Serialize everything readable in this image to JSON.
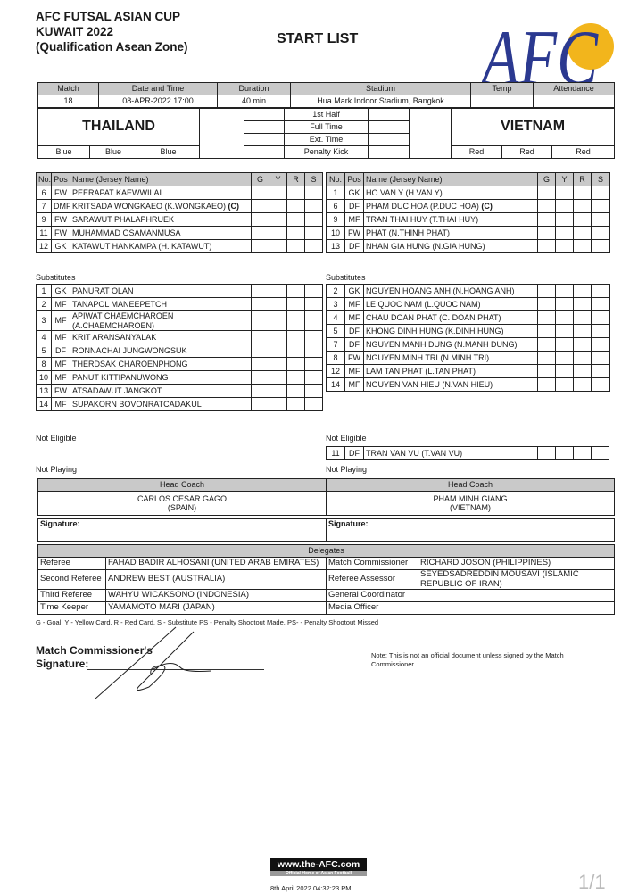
{
  "header": {
    "title_lines": [
      "AFC FUTSAL ASIAN CUP",
      "KUWAIT 2022",
      "(Qualification Asean Zone)"
    ],
    "doc_title": "START LIST",
    "logo_text": "AFC",
    "logo_color": "#2b3990",
    "ball_color": "#f2b51c"
  },
  "match": {
    "labels": {
      "match": "Match",
      "date": "Date and Time",
      "duration": "Duration",
      "stadium": "Stadium",
      "temp": "Temp",
      "attendance": "Attendance"
    },
    "values": {
      "match": "18",
      "date": "08-APR-2022 17:00",
      "duration": "40 min",
      "stadium": "Hua Mark Indoor Stadium, Bangkok",
      "temp": "",
      "attendance": ""
    },
    "home_team": "THAILAND",
    "away_team": "VIETNAM",
    "periods": [
      "1st Half",
      "Full Time",
      "Ext. Time",
      "Penalty Kick"
    ],
    "home_colors": [
      "Blue",
      "Blue",
      "Blue"
    ],
    "away_colors": [
      "Red",
      "Red",
      "Red"
    ]
  },
  "columns": [
    "No.",
    "Pos",
    "Name (Jersey Name)",
    "G",
    "Y",
    "R",
    "S"
  ],
  "home": {
    "starters": [
      {
        "no": "6",
        "pos": "FW",
        "name": "PEERAPAT KAEWWILAI"
      },
      {
        "no": "7",
        "pos": "DMF",
        "name": "KRITSADA WONGKAEO (K.WONGKAEO)",
        "captain": "(C)"
      },
      {
        "no": "9",
        "pos": "FW",
        "name": "SARAWUT PHALAPHRUEK"
      },
      {
        "no": "11",
        "pos": "FW",
        "name": "MUHAMMAD OSAMANMUSA"
      },
      {
        "no": "12",
        "pos": "GK",
        "name": "KATAWUT HANKAMPA (H. KATAWUT)"
      }
    ],
    "substitutes_label": "Substitutes",
    "substitutes": [
      {
        "no": "1",
        "pos": "GK",
        "name": "PANURAT OLAN"
      },
      {
        "no": "2",
        "pos": "MF",
        "name": "TANAPOL MANEEPETCH"
      },
      {
        "no": "3",
        "pos": "MF",
        "name": "APIWAT CHAEMCHAROEN (A.CHAEMCHAROEN)"
      },
      {
        "no": "4",
        "pos": "MF",
        "name": "KRIT ARANSANYALAK"
      },
      {
        "no": "5",
        "pos": "DF",
        "name": "RONNACHAI JUNGWONGSUK"
      },
      {
        "no": "8",
        "pos": "MF",
        "name": "THERDSAK CHAROENPHONG"
      },
      {
        "no": "10",
        "pos": "MF",
        "name": "PANUT KITTIPANUWONG"
      },
      {
        "no": "13",
        "pos": "FW",
        "name": "ATSADAWUT JANGKOT"
      },
      {
        "no": "14",
        "pos": "MF",
        "name": "SUPAKORN BOVONRATCADAKUL"
      }
    ],
    "not_eligible_label": "Not Eligible",
    "not_eligible": [],
    "not_playing_label": "Not Playing"
  },
  "away": {
    "starters": [
      {
        "no": "1",
        "pos": "GK",
        "name": "HO VAN Y (H.VAN Y)"
      },
      {
        "no": "6",
        "pos": "DF",
        "name": "PHAM DUC HOA (P.DUC HOA)",
        "captain": "(C)"
      },
      {
        "no": "9",
        "pos": "MF",
        "name": "TRAN THAI HUY (T.THAI HUY)"
      },
      {
        "no": "10",
        "pos": "FW",
        "name": "PHAT (N.THINH PHAT)"
      },
      {
        "no": "13",
        "pos": "DF",
        "name": "NHAN GIA HUNG (N.GIA HUNG)"
      }
    ],
    "substitutes_label": "Substitutes",
    "substitutes": [
      {
        "no": "2",
        "pos": "GK",
        "name": "NGUYEN HOANG ANH (N.HOANG ANH)"
      },
      {
        "no": "3",
        "pos": "MF",
        "name": "LE QUOC NAM (L.QUOC NAM)"
      },
      {
        "no": "4",
        "pos": "MF",
        "name": "CHAU DOAN PHAT (C. DOAN PHAT)"
      },
      {
        "no": "5",
        "pos": "DF",
        "name": "KHONG DINH HUNG (K.DINH HUNG)"
      },
      {
        "no": "7",
        "pos": "DF",
        "name": "NGUYEN MANH DUNG (N.MANH DUNG)"
      },
      {
        "no": "8",
        "pos": "FW",
        "name": "NGUYEN MINH TRI (N.MINH TRI)"
      },
      {
        "no": "12",
        "pos": "MF",
        "name": "LAM TAN PHAT (L.TAN PHAT)"
      },
      {
        "no": "14",
        "pos": "MF",
        "name": "NGUYEN VAN HIEU (N.VAN HIEU)"
      }
    ],
    "not_eligible_label": "Not Eligible",
    "not_eligible": [
      {
        "no": "11",
        "pos": "DF",
        "name": "TRAN VAN VU (T.VAN VU)"
      }
    ],
    "not_playing_label": "Not Playing"
  },
  "coaches": {
    "label": "Head Coach",
    "home": {
      "name": "CARLOS CESAR GAGO",
      "country": "(SPAIN)"
    },
    "away": {
      "name": "PHAM MINH GIANG",
      "country": "(VIETNAM)"
    },
    "signature_label": "Signature:"
  },
  "delegates": {
    "label": "Delegates",
    "left": [
      {
        "role": "Referee",
        "name": "FAHAD BADIR ALHOSANI (UNITED ARAB EMIRATES)"
      },
      {
        "role": "Second Referee",
        "name": "ANDREW BEST (AUSTRALIA)"
      },
      {
        "role": "Third Referee",
        "name": "WAHYU WICAKSONO (INDONESIA)"
      },
      {
        "role": "Time Keeper",
        "name": "YAMAMOTO MARI (JAPAN)"
      }
    ],
    "right": [
      {
        "role": "Match Commissioner",
        "name": "RICHARD JOSON (PHILIPPINES)"
      },
      {
        "role": "Referee Assessor",
        "name": "SEYEDSADREDDIN MOUSAVI (ISLAMIC REPUBLIC OF IRAN)"
      },
      {
        "role": "General Coordinator",
        "name": ""
      },
      {
        "role": "Media Officer",
        "name": ""
      }
    ]
  },
  "legend": "G - Goal, Y - Yellow Card, R - Red Card, S - Substitute PS - Penalty Shootout Made, PS- - Penalty Shootout Missed",
  "commissioner_signature": {
    "line1": "Match Commissioner's",
    "line2": "Signature:"
  },
  "note": "Note: This is not an official document unless signed by the Match Commissioner.",
  "footer": {
    "site": "www.the-AFC.com",
    "tagline": "Official Home of Asian Football",
    "printed": "8th April 2022 04:32:23 PM",
    "page": "1/1"
  }
}
